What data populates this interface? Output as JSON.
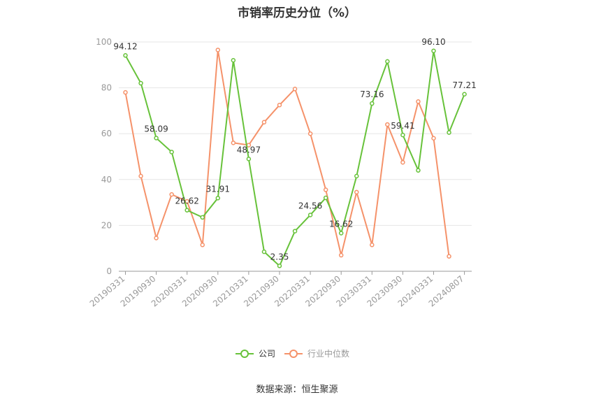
{
  "chart_data": {
    "type": "line",
    "title": "市销率历史分位（%）",
    "source": "数据来源：恒生聚源",
    "ylim": [
      0,
      100
    ],
    "yticks": [
      "0",
      "20",
      "40",
      "60",
      "80",
      "100"
    ],
    "xtick_labels": [
      "20190331",
      "20190930",
      "20200331",
      "20200930",
      "20210331",
      "20210930",
      "20220331",
      "20220930",
      "20230331",
      "20230930",
      "20240331",
      "20240807"
    ],
    "x": [
      "20190331",
      "20190630",
      "20190930",
      "20191231",
      "20200331",
      "20200630",
      "20200930",
      "20201231",
      "20210331",
      "20210630",
      "20210930",
      "20211231",
      "20220331",
      "20220630",
      "20220930",
      "20221231",
      "20230331",
      "20230630",
      "20230930",
      "20231231",
      "20240331",
      "20240630",
      "20240807"
    ],
    "series": [
      {
        "name": "公司",
        "color": "#67c23a",
        "values": [
          94.12,
          82,
          58.09,
          52,
          26.62,
          23.5,
          31.91,
          92,
          48.97,
          8.5,
          2.35,
          17.5,
          24.56,
          32,
          16.62,
          41.5,
          73.16,
          91.5,
          59.41,
          44,
          96.1,
          60.5,
          77.21
        ],
        "labels": [
          "94.12",
          "",
          "58.09",
          "",
          "26.62",
          "",
          "31.91",
          "",
          "48.97",
          "",
          "2.35",
          "",
          "24.56",
          "",
          "16.62",
          "",
          "73.16",
          "",
          "59.41",
          "",
          "96.10",
          "",
          "77.21"
        ]
      },
      {
        "name": "行业中位数",
        "color": "#f5926a",
        "values": [
          78,
          41.5,
          14.5,
          33.5,
          30.5,
          11.5,
          96.5,
          56,
          55,
          65,
          72.5,
          79.5,
          60,
          35.5,
          7,
          34.5,
          11.5,
          64,
          47.5,
          74,
          58,
          6.5,
          null
        ]
      }
    ],
    "legend_position": "bottom",
    "grid": true
  }
}
